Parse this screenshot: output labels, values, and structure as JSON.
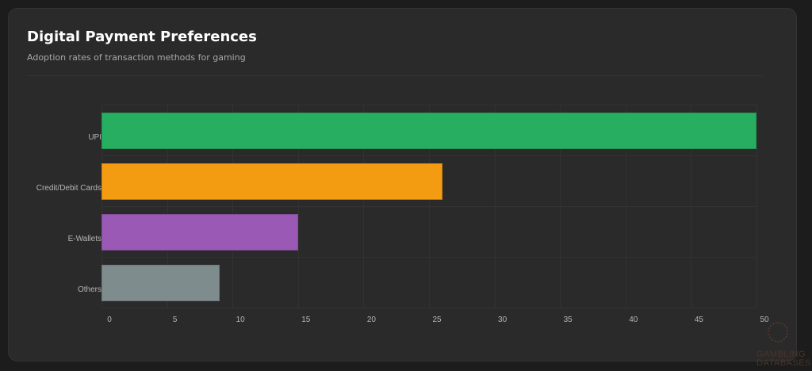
{
  "card": {
    "title": "Digital Payment Preferences",
    "subtitle": "Adoption rates of transaction methods for gaming"
  },
  "watermark": {
    "line1": "GAMBLING",
    "line2": "DATABASES"
  },
  "chart_data": {
    "type": "bar",
    "orientation": "horizontal",
    "title": "Digital Payment Preferences",
    "subtitle": "Adoption rates of transaction methods for gaming",
    "categories": [
      "UPI",
      "Credit/Debit Cards",
      "E-Wallets",
      "Others"
    ],
    "values": [
      50,
      26,
      15,
      9
    ],
    "colors": [
      "#27ae60",
      "#f39c12",
      "#9b59b6",
      "#7f8c8d"
    ],
    "xlabel": "",
    "ylabel": "",
    "xlim": [
      0,
      50
    ],
    "x_ticks": [
      "0",
      "5",
      "10",
      "15",
      "20",
      "25",
      "30",
      "35",
      "40",
      "45",
      "50"
    ],
    "grid": true,
    "legend": "none"
  }
}
